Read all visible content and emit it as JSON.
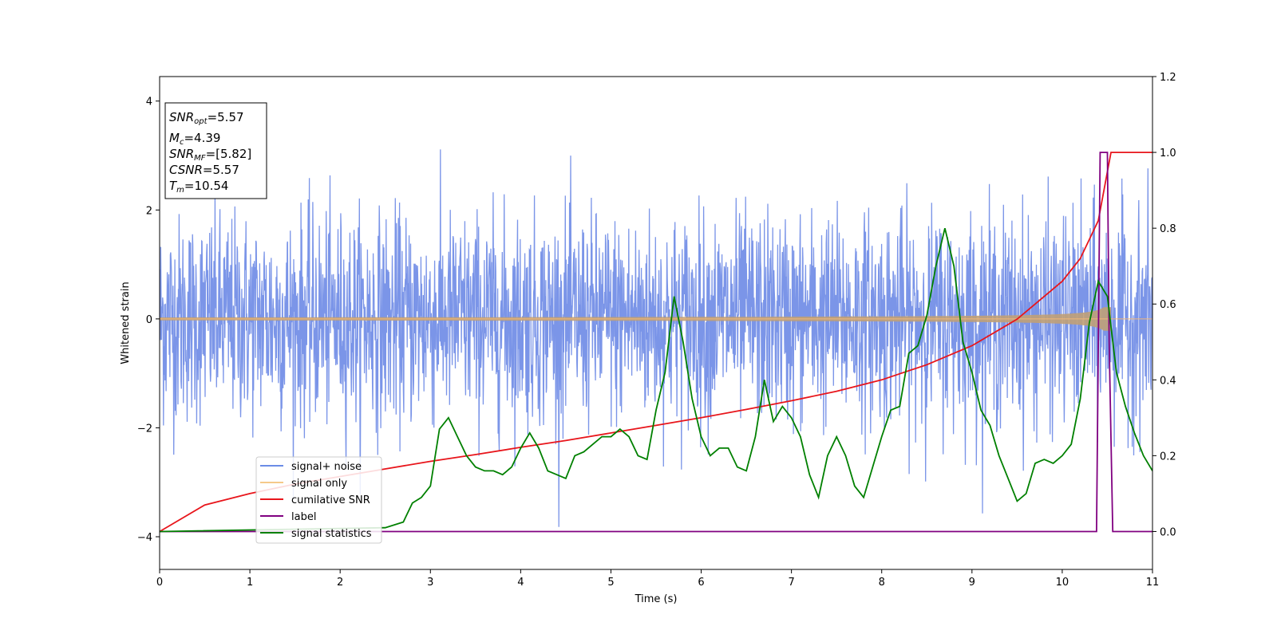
{
  "chart_data": {
    "type": "line",
    "title": "",
    "xlabel": "Time (s)",
    "ylabel": "Whitened strain",
    "ylabel_right": "",
    "xlim": [
      0,
      11
    ],
    "ylim": [
      -4.6,
      4.45
    ],
    "ylim_right": [
      -0.1,
      1.2
    ],
    "x_ticks": [
      "0",
      "1",
      "2",
      "3",
      "4",
      "5",
      "6",
      "7",
      "8",
      "9",
      "10",
      "11"
    ],
    "y_ticks": [
      "−4",
      "−2",
      "0",
      "2",
      "4"
    ],
    "y_ticks_right": [
      "0.0",
      "0.2",
      "0.4",
      "0.6",
      "0.8",
      "1.0",
      "1.2"
    ],
    "legend_position": "lower-left",
    "grid": false,
    "annotation": {
      "snr_opt": {
        "base": "SNR",
        "sub": "opt",
        "value": "=5.57"
      },
      "mc": {
        "base": "M",
        "sub": "c",
        "value": "=4.39"
      },
      "snr_mf": {
        "base": "SNR",
        "sub": "MF",
        "value": "=[5.82]"
      },
      "csnr": {
        "base": "CSNR",
        "value": "=5.57"
      },
      "tm": {
        "base": "T",
        "sub": "m",
        "value": "=10.54"
      }
    },
    "series": [
      {
        "name": "signal+ noise",
        "axis": "left",
        "color": "#6b8ce6",
        "description": "white-noise-like strain, amplitude ~±2.5 with spikes to ±4"
      },
      {
        "name": "signal only",
        "axis": "left",
        "color": "#f5c98a",
        "description": "chirp growing from ~0.02 to ~0.35 amplitude, ending near 10.54 s"
      },
      {
        "name": "cumilative SNR",
        "axis": "right",
        "color": "#e8151b",
        "x": [
          0,
          0.5,
          1,
          1.5,
          2,
          2.5,
          3,
          3.5,
          4,
          4.5,
          5,
          5.5,
          6,
          6.5,
          7,
          7.5,
          8,
          8.5,
          9,
          9.5,
          10,
          10.2,
          10.4,
          10.54,
          10.55,
          11
        ],
        "y": [
          0.0,
          0.07,
          0.1,
          0.125,
          0.145,
          0.165,
          0.185,
          0.203,
          0.222,
          0.24,
          0.26,
          0.28,
          0.3,
          0.322,
          0.345,
          0.37,
          0.4,
          0.44,
          0.49,
          0.56,
          0.66,
          0.72,
          0.82,
          1.0,
          1.0,
          1.0
        ]
      },
      {
        "name": "label",
        "axis": "right",
        "color": "#800080",
        "x": [
          0,
          10.38,
          10.42,
          10.5,
          10.52,
          10.56,
          11
        ],
        "y": [
          0,
          0,
          1.0,
          1.0,
          0.5,
          0,
          0
        ]
      },
      {
        "name": "signal statistics",
        "axis": "right",
        "color": "#008000",
        "x": [
          0,
          2.5,
          2.7,
          2.8,
          2.9,
          3.0,
          3.1,
          3.2,
          3.3,
          3.4,
          3.5,
          3.6,
          3.7,
          3.8,
          3.9,
          4.0,
          4.1,
          4.2,
          4.3,
          4.4,
          4.5,
          4.6,
          4.7,
          4.8,
          4.9,
          5.0,
          5.1,
          5.2,
          5.3,
          5.4,
          5.5,
          5.6,
          5.7,
          5.8,
          5.9,
          6.0,
          6.1,
          6.2,
          6.3,
          6.4,
          6.5,
          6.6,
          6.7,
          6.8,
          6.9,
          7.0,
          7.1,
          7.2,
          7.3,
          7.4,
          7.5,
          7.6,
          7.7,
          7.8,
          7.9,
          8.0,
          8.1,
          8.2,
          8.3,
          8.4,
          8.5,
          8.6,
          8.7,
          8.8,
          8.9,
          9.0,
          9.1,
          9.2,
          9.3,
          9.4,
          9.5,
          9.6,
          9.7,
          9.8,
          9.9,
          10.0,
          10.1,
          10.2,
          10.3,
          10.4,
          10.5,
          10.6,
          10.7,
          10.8,
          10.9,
          11.0
        ],
        "y": [
          0.0,
          0.01,
          0.025,
          0.075,
          0.09,
          0.12,
          0.27,
          0.3,
          0.25,
          0.2,
          0.17,
          0.16,
          0.16,
          0.15,
          0.17,
          0.22,
          0.26,
          0.22,
          0.16,
          0.15,
          0.14,
          0.2,
          0.21,
          0.23,
          0.25,
          0.25,
          0.27,
          0.25,
          0.2,
          0.19,
          0.32,
          0.42,
          0.62,
          0.5,
          0.35,
          0.25,
          0.2,
          0.22,
          0.22,
          0.17,
          0.16,
          0.25,
          0.4,
          0.29,
          0.33,
          0.3,
          0.25,
          0.15,
          0.09,
          0.2,
          0.25,
          0.2,
          0.12,
          0.09,
          0.17,
          0.25,
          0.32,
          0.33,
          0.47,
          0.49,
          0.57,
          0.7,
          0.8,
          0.7,
          0.5,
          0.42,
          0.32,
          0.28,
          0.2,
          0.14,
          0.08,
          0.1,
          0.18,
          0.19,
          0.18,
          0.2,
          0.23,
          0.35,
          0.55,
          0.66,
          0.62,
          0.42,
          0.33,
          0.26,
          0.2,
          0.16
        ]
      }
    ]
  }
}
